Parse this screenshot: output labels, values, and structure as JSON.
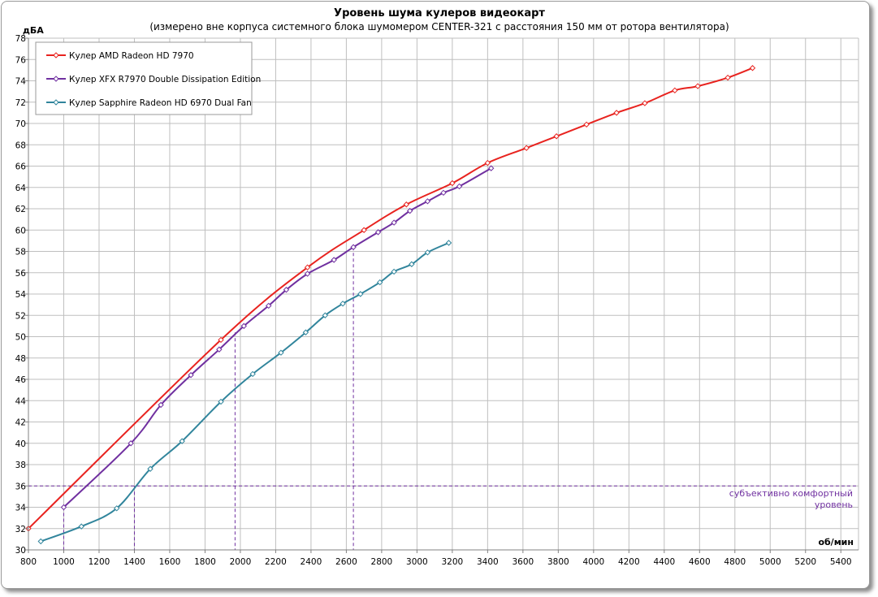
{
  "chart_data": {
    "type": "line",
    "title": "Уровень шума кулеров видеокарт",
    "subtitle": "(измерено вне корпуса системного блока шумомером CENTER-321 с расстояния 150  мм от ротора вентилятора)",
    "ylabel": "дБА",
    "xlabel": "об/мин",
    "xlim": [
      800,
      5500
    ],
    "ylim": [
      30,
      78
    ],
    "x_ticks": [
      800,
      1000,
      1200,
      1400,
      1600,
      1800,
      2000,
      2200,
      2400,
      2600,
      2800,
      3000,
      3200,
      3400,
      3600,
      3800,
      4000,
      4200,
      4400,
      4600,
      4800,
      5000,
      5200,
      5400
    ],
    "y_ticks": [
      30,
      32,
      34,
      36,
      38,
      40,
      42,
      44,
      46,
      48,
      50,
      52,
      54,
      56,
      58,
      60,
      62,
      64,
      66,
      68,
      70,
      72,
      74,
      76,
      78
    ],
    "grid": true,
    "legend_position": "top-left",
    "series": [
      {
        "name": "Кулер AMD Radeon HD 7970",
        "color": "#e8231f",
        "x": [
          800,
          1890,
          2380,
          2700,
          2940,
          3200,
          3400,
          3620,
          3790,
          3960,
          4130,
          4290,
          4460,
          4590,
          4760,
          4900
        ],
        "y": [
          32.0,
          49.7,
          56.5,
          60.0,
          62.4,
          64.4,
          66.3,
          67.7,
          68.8,
          69.9,
          71.0,
          71.9,
          73.1,
          73.5,
          74.3,
          75.2
        ]
      },
      {
        "name": "Кулер XFX R7970 Double Dissipation Edition",
        "color": "#7030a0",
        "x": [
          1000,
          1380,
          1550,
          1720,
          1880,
          2020,
          2160,
          2260,
          2380,
          2530,
          2640,
          2780,
          2870,
          2960,
          3060,
          3150,
          3240,
          3420
        ],
        "y": [
          34.0,
          40.0,
          43.6,
          46.4,
          48.8,
          51.0,
          52.9,
          54.4,
          55.9,
          57.2,
          58.4,
          59.8,
          60.7,
          61.8,
          62.7,
          63.5,
          64.1,
          65.8
        ]
      },
      {
        "name": "Кулер Sapphire Radeon HD 6970 Dual Fan",
        "color": "#31859c",
        "x": [
          870,
          1100,
          1300,
          1490,
          1670,
          1890,
          2070,
          2230,
          2370,
          2480,
          2580,
          2680,
          2790,
          2870,
          2970,
          3060,
          3180
        ],
        "y": [
          30.8,
          32.2,
          33.9,
          37.6,
          40.2,
          43.9,
          46.5,
          48.5,
          50.4,
          52.0,
          53.1,
          54.0,
          55.1,
          56.1,
          56.8,
          57.9,
          58.8
        ]
      }
    ],
    "reference_line": {
      "y": 36,
      "label_line1": "субъективно комфортный",
      "label_line2": "уровень",
      "color": "#7030a0"
    },
    "reference_verticals": [
      {
        "x": 1000,
        "y": 34.0
      },
      {
        "x": 1400,
        "y": 36.0
      },
      {
        "x": 1970,
        "y": 50.4
      },
      {
        "x": 2640,
        "y": 58.4
      }
    ]
  }
}
